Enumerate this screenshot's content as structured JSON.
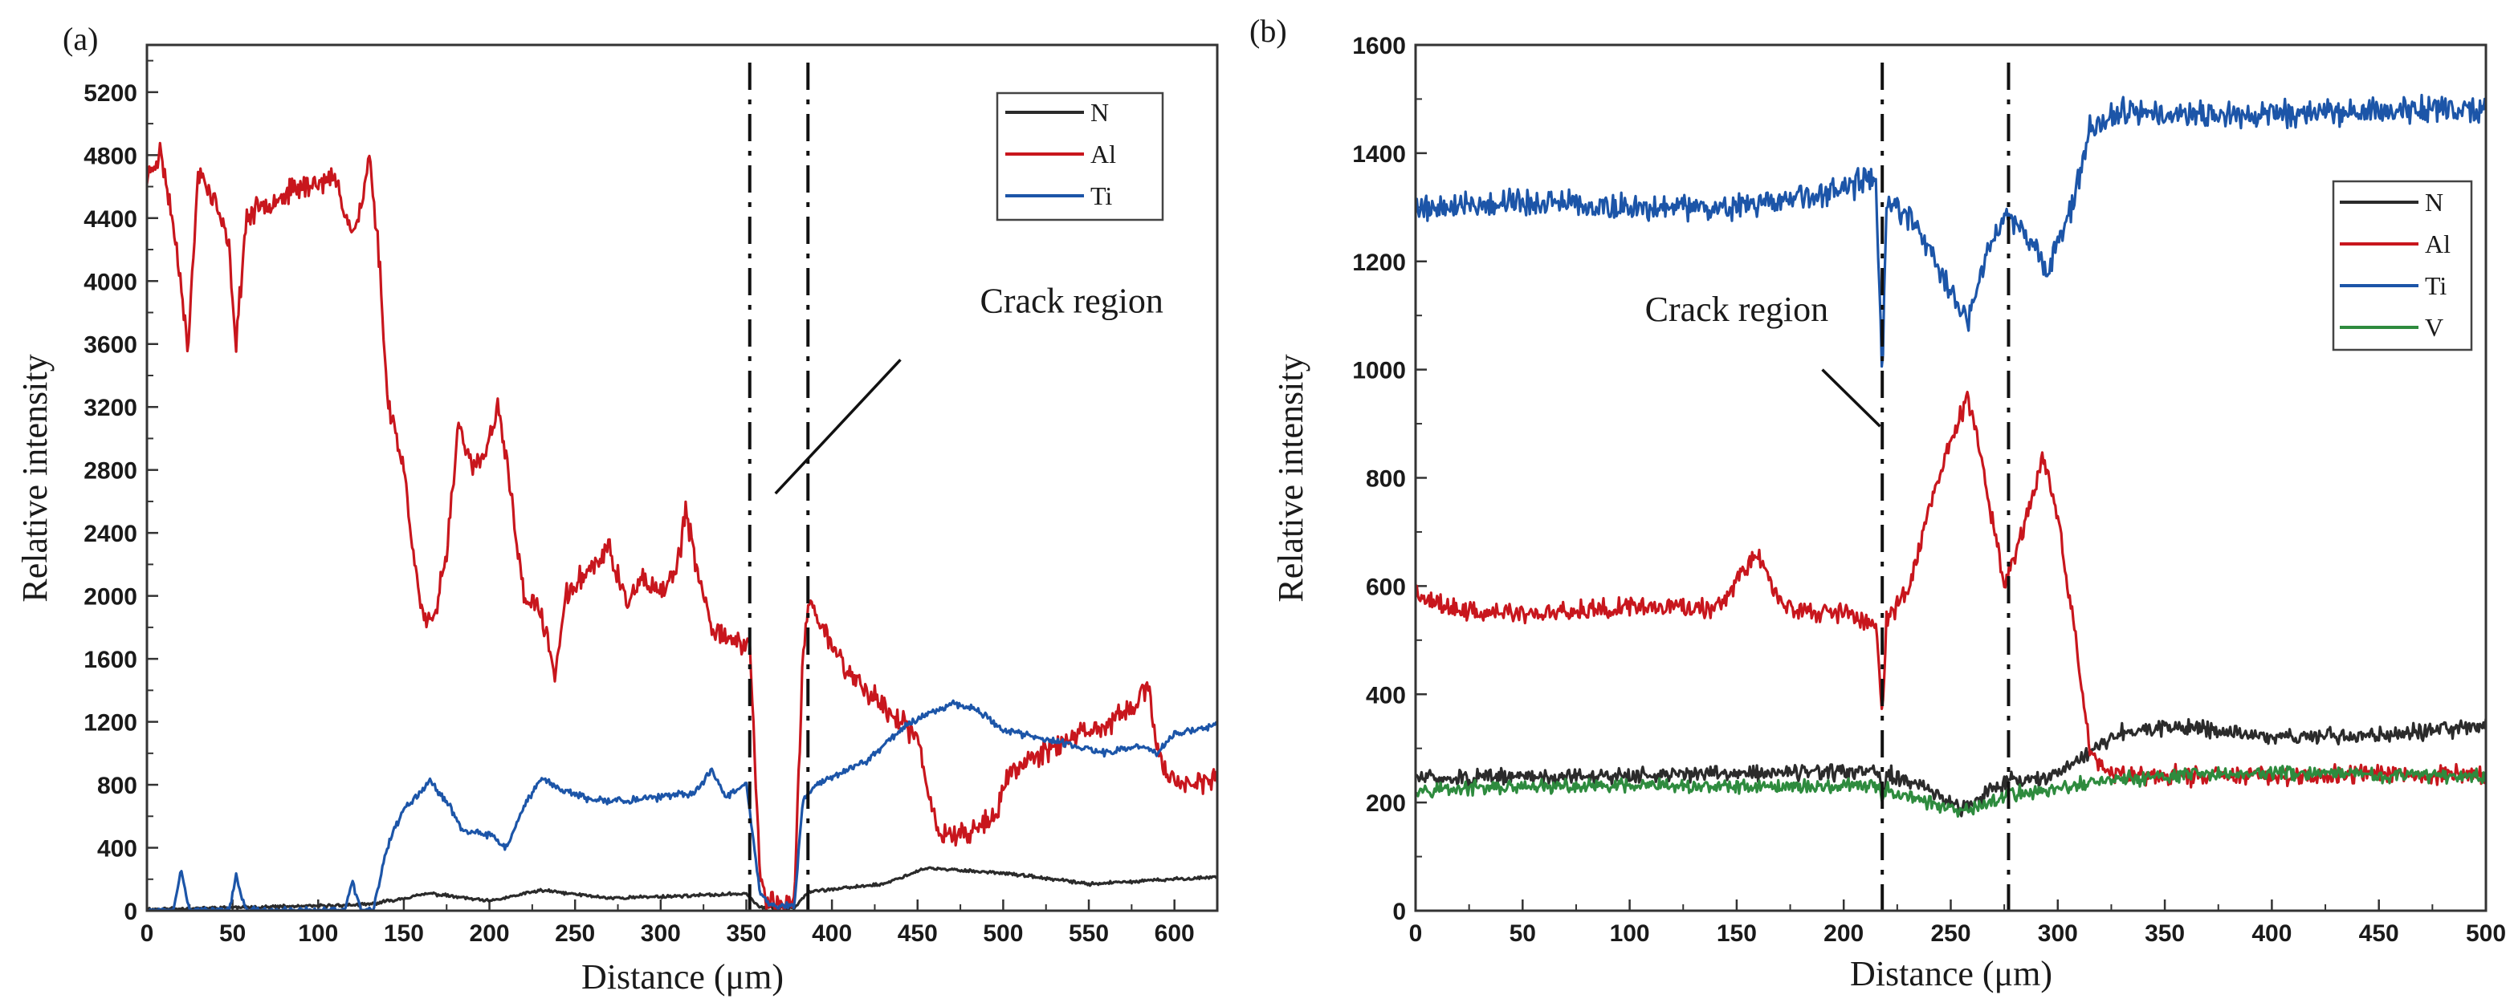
{
  "chart_data": [
    {
      "panel_label": "(a)",
      "type": "line",
      "xlabel": "Distance (μm)",
      "ylabel": "Relative intensity",
      "xlim": [
        0,
        625
      ],
      "ylim": [
        0,
        5500
      ],
      "xticks": [
        0,
        50,
        100,
        150,
        200,
        250,
        300,
        350,
        400,
        450,
        500,
        550,
        600
      ],
      "yticks": [
        0,
        400,
        800,
        1200,
        1600,
        2000,
        2400,
        2800,
        3200,
        3600,
        4000,
        4400,
        4800,
        5200
      ],
      "legend_position": "top-right",
      "crack_lines_x": [
        352,
        386
      ],
      "annotation": {
        "text": "Crack region",
        "text_at": [
          540,
          3800
        ],
        "arrow_from": [
          440,
          3500
        ],
        "arrow_to": [
          367,
          2650
        ]
      },
      "series": [
        {
          "name": "N",
          "color": "#2b2b2b",
          "noise": 12,
          "seed": 11,
          "points": [
            [
              0,
              10
            ],
            [
              50,
              20
            ],
            [
              100,
              30
            ],
            [
              130,
              40
            ],
            [
              165,
              110
            ],
            [
              200,
              60
            ],
            [
              230,
              130
            ],
            [
              270,
              80
            ],
            [
              330,
              100
            ],
            [
              350,
              110
            ],
            [
              358,
              20
            ],
            [
              378,
              20
            ],
            [
              386,
              120
            ],
            [
              430,
              170
            ],
            [
              455,
              270
            ],
            [
              500,
              240
            ],
            [
              550,
              170
            ],
            [
              600,
              200
            ],
            [
              625,
              215
            ]
          ]
        },
        {
          "name": "Al",
          "color": "#c8161d",
          "noise": 90,
          "seed": 23,
          "points": [
            [
              0,
              4650
            ],
            [
              8,
              4820
            ],
            [
              14,
              4450
            ],
            [
              20,
              4000
            ],
            [
              24,
              3550
            ],
            [
              30,
              4700
            ],
            [
              40,
              4500
            ],
            [
              48,
              4200
            ],
            [
              52,
              3600
            ],
            [
              58,
              4400
            ],
            [
              70,
              4500
            ],
            [
              90,
              4600
            ],
            [
              110,
              4650
            ],
            [
              120,
              4300
            ],
            [
              125,
              4450
            ],
            [
              130,
              4800
            ],
            [
              136,
              4100
            ],
            [
              140,
              3300
            ],
            [
              150,
              2800
            ],
            [
              160,
              1900
            ],
            [
              167,
              1800
            ],
            [
              175,
              2300
            ],
            [
              182,
              3100
            ],
            [
              190,
              2800
            ],
            [
              198,
              2900
            ],
            [
              205,
              3200
            ],
            [
              212,
              2700
            ],
            [
              220,
              2000
            ],
            [
              230,
              1900
            ],
            [
              238,
              1500
            ],
            [
              245,
              2000
            ],
            [
              260,
              2200
            ],
            [
              270,
              2300
            ],
            [
              280,
              1950
            ],
            [
              290,
              2100
            ],
            [
              300,
              2000
            ],
            [
              310,
              2200
            ],
            [
              315,
              2550
            ],
            [
              320,
              2200
            ],
            [
              330,
              1800
            ],
            [
              345,
              1700
            ],
            [
              352,
              1700
            ],
            [
              358,
              200
            ],
            [
              362,
              50
            ],
            [
              370,
              50
            ],
            [
              378,
              50
            ],
            [
              383,
              1600
            ],
            [
              386,
              1950
            ],
            [
              395,
              1800
            ],
            [
              410,
              1500
            ],
            [
              430,
              1300
            ],
            [
              450,
              1100
            ],
            [
              455,
              800
            ],
            [
              462,
              500
            ],
            [
              480,
              500
            ],
            [
              495,
              600
            ],
            [
              505,
              900
            ],
            [
              530,
              1050
            ],
            [
              555,
              1150
            ],
            [
              570,
              1250
            ],
            [
              585,
              1400
            ],
            [
              590,
              1000
            ],
            [
              600,
              820
            ],
            [
              625,
              820
            ]
          ]
        },
        {
          "name": "Ti",
          "color": "#1c55a8",
          "noise": 28,
          "seed": 37,
          "points": [
            [
              0,
              0
            ],
            [
              15,
              0
            ],
            [
              20,
              250
            ],
            [
              25,
              0
            ],
            [
              48,
              0
            ],
            [
              52,
              220
            ],
            [
              58,
              0
            ],
            [
              115,
              0
            ],
            [
              120,
              180
            ],
            [
              125,
              0
            ],
            [
              132,
              0
            ],
            [
              140,
              400
            ],
            [
              150,
              650
            ],
            [
              165,
              820
            ],
            [
              175,
              700
            ],
            [
              185,
              500
            ],
            [
              200,
              480
            ],
            [
              210,
              400
            ],
            [
              220,
              650
            ],
            [
              230,
              850
            ],
            [
              240,
              780
            ],
            [
              260,
              700
            ],
            [
              280,
              700
            ],
            [
              300,
              720
            ],
            [
              320,
              750
            ],
            [
              330,
              900
            ],
            [
              338,
              720
            ],
            [
              350,
              820
            ],
            [
              358,
              100
            ],
            [
              365,
              30
            ],
            [
              378,
              30
            ],
            [
              383,
              700
            ],
            [
              390,
              800
            ],
            [
              400,
              850
            ],
            [
              420,
              950
            ],
            [
              440,
              1150
            ],
            [
              455,
              1250
            ],
            [
              470,
              1320
            ],
            [
              485,
              1280
            ],
            [
              500,
              1150
            ],
            [
              520,
              1100
            ],
            [
              540,
              1050
            ],
            [
              560,
              1000
            ],
            [
              580,
              1050
            ],
            [
              590,
              1000
            ],
            [
              600,
              1120
            ],
            [
              625,
              1180
            ]
          ]
        }
      ]
    },
    {
      "panel_label": "(b)",
      "type": "line",
      "xlabel": "Distance (μm)",
      "ylabel": "Relative intensity",
      "xlim": [
        0,
        500
      ],
      "ylim": [
        0,
        1600
      ],
      "xticks": [
        0,
        50,
        100,
        150,
        200,
        250,
        300,
        350,
        400,
        450,
        500
      ],
      "yticks": [
        0,
        200,
        400,
        600,
        800,
        1000,
        1200,
        1400,
        1600
      ],
      "legend_position": "right",
      "crack_lines_x": [
        218,
        277
      ],
      "annotation": {
        "text": "Crack region",
        "text_at": [
          150,
          1090
        ],
        "arrow_from": [
          190,
          1000
        ],
        "arrow_to": [
          217,
          895
        ]
      },
      "series": [
        {
          "name": "N",
          "color": "#2b2b2b",
          "noise": 18,
          "seed": 51,
          "points": [
            [
              0,
              245
            ],
            [
              100,
              250
            ],
            [
              150,
              255
            ],
            [
              200,
              255
            ],
            [
              217,
              255
            ],
            [
              218,
              190
            ],
            [
              220,
              255
            ],
            [
              240,
              220
            ],
            [
              255,
              190
            ],
            [
              265,
              215
            ],
            [
              277,
              240
            ],
            [
              295,
              245
            ],
            [
              310,
              280
            ],
            [
              330,
              330
            ],
            [
              360,
              340
            ],
            [
              400,
              320
            ],
            [
              450,
              325
            ],
            [
              500,
              340
            ]
          ]
        },
        {
          "name": "Al",
          "color": "#c8161d",
          "noise": 22,
          "seed": 63,
          "points": [
            [
              0,
              580
            ],
            [
              30,
              550
            ],
            [
              60,
              550
            ],
            [
              100,
              565
            ],
            [
              140,
              560
            ],
            [
              160,
              660
            ],
            [
              170,
              570
            ],
            [
              180,
              555
            ],
            [
              200,
              550
            ],
            [
              215,
              525
            ],
            [
              218,
              360
            ],
            [
              220,
              540
            ],
            [
              230,
              590
            ],
            [
              240,
              750
            ],
            [
              250,
              870
            ],
            [
              258,
              950
            ],
            [
              265,
              820
            ],
            [
              275,
              600
            ],
            [
              285,
              720
            ],
            [
              293,
              840
            ],
            [
              300,
              720
            ],
            [
              308,
              520
            ],
            [
              315,
              300
            ],
            [
              322,
              250
            ],
            [
              350,
              250
            ],
            [
              400,
              250
            ],
            [
              450,
              255
            ],
            [
              500,
              250
            ]
          ]
        },
        {
          "name": "Ti",
          "color": "#1c55a8",
          "noise": 30,
          "seed": 79,
          "points": [
            [
              0,
              1300
            ],
            [
              50,
              1310
            ],
            [
              100,
              1300
            ],
            [
              150,
              1300
            ],
            [
              200,
              1330
            ],
            [
              215,
              1360
            ],
            [
              218,
              980
            ],
            [
              220,
              1320
            ],
            [
              235,
              1260
            ],
            [
              250,
              1140
            ],
            [
              258,
              1090
            ],
            [
              265,
              1190
            ],
            [
              275,
              1290
            ],
            [
              285,
              1250
            ],
            [
              295,
              1180
            ],
            [
              305,
              1280
            ],
            [
              315,
              1440
            ],
            [
              330,
              1480
            ],
            [
              350,
              1470
            ],
            [
              400,
              1470
            ],
            [
              450,
              1480
            ],
            [
              500,
              1480
            ]
          ]
        },
        {
          "name": "V",
          "color": "#2e8b3e",
          "noise": 16,
          "seed": 97,
          "points": [
            [
              0,
              225
            ],
            [
              100,
              230
            ],
            [
              200,
              230
            ],
            [
              217,
              230
            ],
            [
              218,
              200
            ],
            [
              220,
              225
            ],
            [
              255,
              180
            ],
            [
              277,
              215
            ],
            [
              300,
              225
            ],
            [
              320,
              240
            ],
            [
              360,
              250
            ],
            [
              400,
              255
            ],
            [
              450,
              250
            ],
            [
              500,
              250
            ]
          ]
        }
      ]
    }
  ]
}
